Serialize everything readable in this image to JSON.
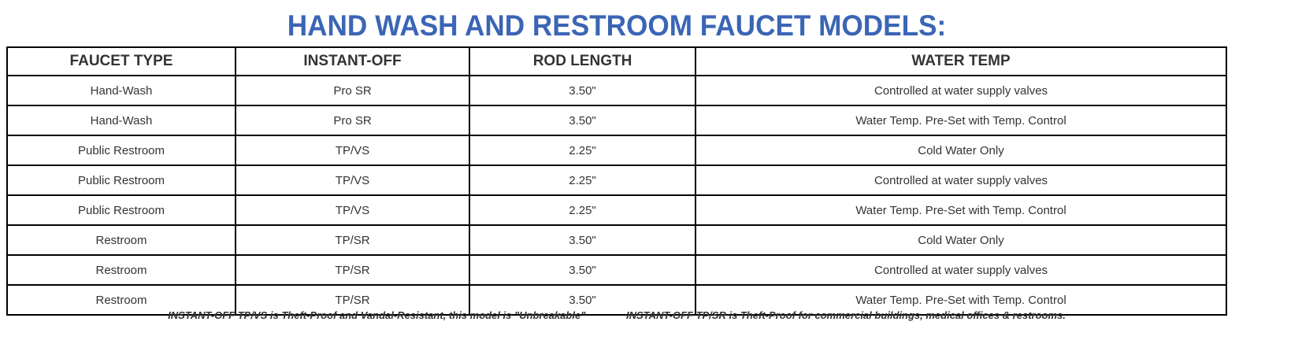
{
  "title": "HAND WASH AND RESTROOM FAUCET MODELS:",
  "table": {
    "headers": [
      "FAUCET TYPE",
      "INSTANT-OFF",
      "ROD LENGTH",
      "WATER TEMP"
    ],
    "rows": [
      [
        "Hand-Wash",
        "Pro SR",
        "3.50\"",
        "Controlled at water supply valves"
      ],
      [
        "Hand-Wash",
        "Pro SR",
        "3.50\"",
        "Water Temp. Pre-Set with Temp. Control"
      ],
      [
        "Public Restroom",
        "TP/VS",
        "2.25\"",
        "Cold Water Only"
      ],
      [
        "Public Restroom",
        "TP/VS",
        "2.25\"",
        "Controlled at water supply valves"
      ],
      [
        "Public Restroom",
        "TP/VS",
        "2.25\"",
        "Water Temp. Pre-Set with Temp. Control"
      ],
      [
        "Restroom",
        "TP/SR",
        "3.50\"",
        "Cold Water Only"
      ],
      [
        "Restroom",
        "TP/SR",
        "3.50\"",
        "Controlled at water supply valves"
      ],
      [
        "Restroom",
        "TP/SR",
        "3.50\"",
        "Water Temp. Pre-Set with Temp. Control"
      ]
    ]
  },
  "notes": [
    "INSTANT-OFF TP/VS is Theft-Proof and Vandal-Resistant, this model is \"Unbreakable\"",
    "INSTANT-OFF TP/SR is Theft-Proof for commercial buildings, medical offices & restrooms."
  ],
  "colors": {
    "title": "#3b65b5"
  }
}
